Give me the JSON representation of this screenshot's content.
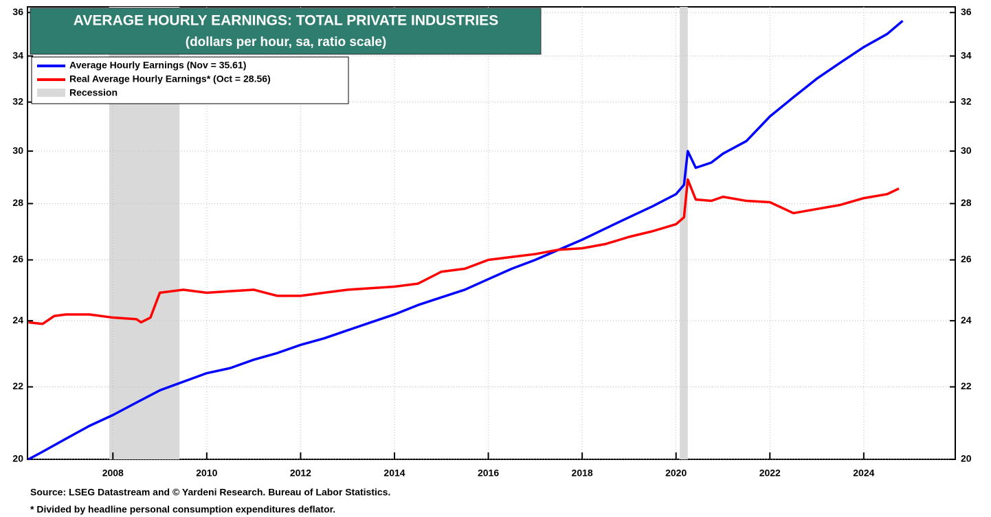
{
  "chart_data": {
    "type": "line",
    "title": "AVERAGE HOURLY EARNINGS: TOTAL PRIVATE INDUSTRIES",
    "subtitle": "(dollars per hour, sa, ratio scale)",
    "yscale": "log",
    "grid": true,
    "legend": "upper left",
    "xlim": [
      2006.18,
      2025.95
    ],
    "xticks": [
      2008,
      2010,
      2012,
      2014,
      2016,
      2018,
      2020,
      2022,
      2024
    ],
    "ylim": [
      20,
      36.27
    ],
    "yticks": [
      20,
      22,
      24,
      26,
      28,
      30,
      32,
      34,
      36
    ],
    "recession_label": "Recession",
    "recession_color": "#d9d9d9",
    "recessions": [
      [
        2007.92,
        2009.42
      ],
      [
        2020.08,
        2020.25
      ]
    ],
    "series": [
      {
        "name": "Average Hourly Earnings (Nov = 35.61)",
        "color": "#0000ff",
        "x": [
          2006.2,
          2006.5,
          2007.0,
          2007.5,
          2008.0,
          2008.5,
          2009.0,
          2009.5,
          2010.0,
          2010.5,
          2011.0,
          2011.5,
          2012.0,
          2012.5,
          2013.0,
          2013.5,
          2014.0,
          2014.5,
          2015.0,
          2015.5,
          2016.0,
          2016.5,
          2017.0,
          2017.5,
          2018.0,
          2018.5,
          2019.0,
          2019.5,
          2020.0,
          2020.17,
          2020.25,
          2020.42,
          2020.75,
          2021.0,
          2021.5,
          2022.0,
          2022.5,
          2023.0,
          2023.5,
          2024.0,
          2024.5,
          2024.83
        ],
        "values": [
          20.0,
          20.2,
          20.55,
          20.9,
          21.2,
          21.55,
          21.9,
          22.15,
          22.4,
          22.55,
          22.8,
          23.0,
          23.25,
          23.45,
          23.7,
          23.95,
          24.2,
          24.5,
          24.75,
          25.0,
          25.35,
          25.7,
          26.0,
          26.35,
          26.7,
          27.1,
          27.5,
          27.9,
          28.35,
          28.7,
          30.0,
          29.35,
          29.55,
          29.9,
          30.4,
          31.4,
          32.2,
          33.0,
          33.7,
          34.4,
          35.0,
          35.61
        ]
      },
      {
        "name": "Real Average Hourly Earnings* (Oct = 28.56)",
        "color": "#ff0000",
        "x": [
          2006.2,
          2006.5,
          2006.75,
          2007.0,
          2007.5,
          2008.0,
          2008.5,
          2008.6,
          2008.8,
          2009.0,
          2009.5,
          2010.0,
          2010.5,
          2011.0,
          2011.5,
          2012.0,
          2012.5,
          2013.0,
          2013.5,
          2014.0,
          2014.5,
          2015.0,
          2015.5,
          2016.0,
          2016.5,
          2017.0,
          2017.5,
          2018.0,
          2018.5,
          2019.0,
          2019.5,
          2020.0,
          2020.17,
          2020.25,
          2020.42,
          2020.75,
          2021.0,
          2021.5,
          2022.0,
          2022.5,
          2023.0,
          2023.5,
          2024.0,
          2024.5,
          2024.75
        ],
        "values": [
          23.95,
          23.9,
          24.15,
          24.2,
          24.2,
          24.1,
          24.05,
          23.95,
          24.1,
          24.9,
          25.0,
          24.9,
          24.95,
          25.0,
          24.8,
          24.8,
          24.9,
          25.0,
          25.05,
          25.1,
          25.2,
          25.6,
          25.7,
          26.0,
          26.1,
          26.2,
          26.35,
          26.4,
          26.55,
          26.8,
          27.0,
          27.25,
          27.5,
          28.9,
          28.15,
          28.1,
          28.25,
          28.1,
          28.05,
          27.65,
          27.8,
          27.95,
          28.2,
          28.35,
          28.56
        ]
      }
    ],
    "source": "Source: LSEG Datastream and © Yardeni Research. Bureau of Labor Statistics.",
    "note": "* Divided by headline personal consumption expenditures deflator."
  }
}
